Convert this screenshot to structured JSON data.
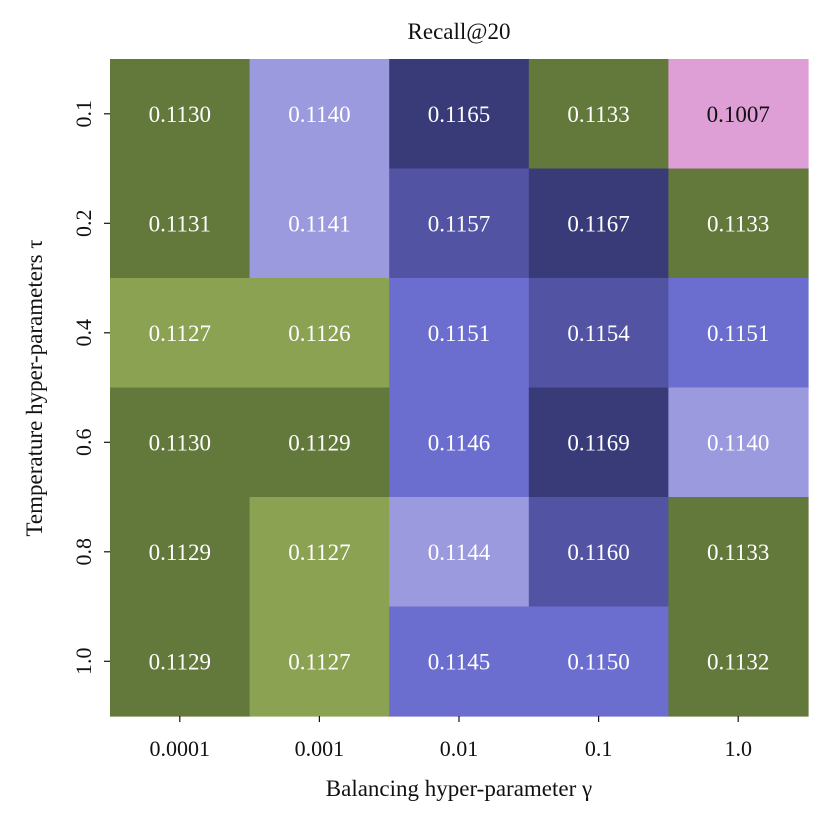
{
  "chart_data": {
    "type": "heatmap",
    "title": "Recall@20",
    "xlabel": "Balancing hyper-parameter γ",
    "ylabel": "Temperature hyper-parameters τ",
    "x_categories": [
      "0.0001",
      "0.001",
      "0.01",
      "0.1",
      "1.0"
    ],
    "y_categories": [
      "0.1",
      "0.2",
      "0.4",
      "0.6",
      "0.8",
      "1.0"
    ],
    "values": [
      [
        "0.1130",
        "0.1140",
        "0.1165",
        "0.1133",
        "0.1007"
      ],
      [
        "0.1131",
        "0.1141",
        "0.1157",
        "0.1167",
        "0.1133"
      ],
      [
        "0.1127",
        "0.1126",
        "0.1151",
        "0.1154",
        "0.1151"
      ],
      [
        "0.1130",
        "0.1129",
        "0.1146",
        "0.1169",
        "0.1140"
      ],
      [
        "0.1129",
        "0.1127",
        "0.1144",
        "0.1160",
        "0.1133"
      ],
      [
        "0.1129",
        "0.1127",
        "0.1145",
        "0.1150",
        "0.1132"
      ]
    ],
    "cell_colors": [
      [
        "#63793b",
        "#9c9ade",
        "#393b79",
        "#63793b",
        "#de9ed6"
      ],
      [
        "#63793b",
        "#9c9ade",
        "#5253a3",
        "#393b79",
        "#63793b"
      ],
      [
        "#8ca253",
        "#8ca253",
        "#6b6ecf",
        "#5253a3",
        "#6b6ecf"
      ],
      [
        "#63793b",
        "#63793b",
        "#6b6ecf",
        "#393b79",
        "#9c9ade"
      ],
      [
        "#63793b",
        "#8ca253",
        "#9c9ade",
        "#5253a3",
        "#63793b"
      ],
      [
        "#63793b",
        "#8ca253",
        "#6b6ecf",
        "#6b6ecf",
        "#63793b"
      ]
    ],
    "text_colors": [
      [
        "#ffffff",
        "#ffffff",
        "#ffffff",
        "#ffffff",
        "#111111"
      ],
      [
        "#ffffff",
        "#ffffff",
        "#ffffff",
        "#ffffff",
        "#ffffff"
      ],
      [
        "#ffffff",
        "#ffffff",
        "#ffffff",
        "#ffffff",
        "#ffffff"
      ],
      [
        "#ffffff",
        "#ffffff",
        "#ffffff",
        "#ffffff",
        "#ffffff"
      ],
      [
        "#ffffff",
        "#ffffff",
        "#ffffff",
        "#ffffff",
        "#ffffff"
      ],
      [
        "#ffffff",
        "#ffffff",
        "#ffffff",
        "#ffffff",
        "#ffffff"
      ]
    ],
    "grid": false,
    "legend": "none"
  }
}
